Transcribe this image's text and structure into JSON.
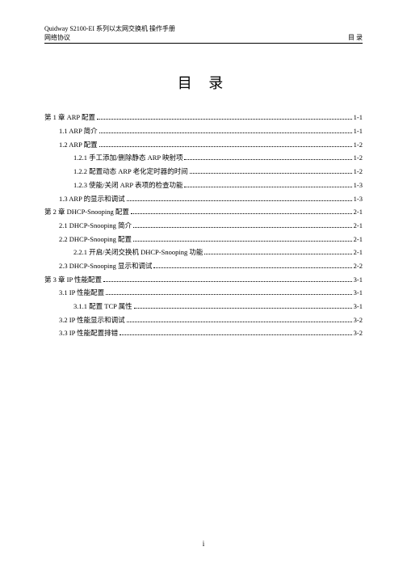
{
  "header": {
    "left_top": "Quidway S2100-EI 系列以太网交换机  操作手册",
    "left_bottom": "网络协议",
    "right": "目 录"
  },
  "title": "目 录",
  "toc": [
    {
      "level": 0,
      "label": "第 1 章 ARP 配置",
      "page": "1-1"
    },
    {
      "level": 1,
      "label": "1.1 ARP 简介",
      "page": "1-1"
    },
    {
      "level": 1,
      "label": "1.2 ARP 配置",
      "page": "1-2"
    },
    {
      "level": 2,
      "label": "1.2.1 手工添加/删除静态 ARP 映射项",
      "page": "1-2"
    },
    {
      "level": 2,
      "label": "1.2.2 配置动态 ARP 老化定时器的时间",
      "page": "1-2"
    },
    {
      "level": 2,
      "label": "1.2.3 使能/关闭 ARP 表项的检查功能",
      "page": "1-3"
    },
    {
      "level": 1,
      "label": "1.3 ARP 的显示和调试",
      "page": "1-3"
    },
    {
      "level": 0,
      "label": "第 2 章 DHCP-Snooping 配置",
      "page": "2-1"
    },
    {
      "level": 1,
      "label": "2.1 DHCP-Snooping 简介",
      "page": "2-1"
    },
    {
      "level": 1,
      "label": "2.2 DHCP-Snooping 配置",
      "page": "2-1"
    },
    {
      "level": 2,
      "label": "2.2.1 开启/关闭交换机 DHCP-Snooping 功能",
      "page": "2-1"
    },
    {
      "level": 1,
      "label": "2.3 DHCP-Snooping 显示和调试",
      "page": "2-2"
    },
    {
      "level": 0,
      "label": "第 3 章 IP 性能配置",
      "page": "3-1"
    },
    {
      "level": 1,
      "label": "3.1 IP 性能配置",
      "page": "3-1"
    },
    {
      "level": 2,
      "label": "3.1.1 配置 TCP 属性",
      "page": "3-1"
    },
    {
      "level": 1,
      "label": "3.2 IP 性能显示和调试",
      "page": "3-2"
    },
    {
      "level": 1,
      "label": "3.3 IP 性能配置排错",
      "page": "3-2"
    }
  ],
  "footer": "i"
}
